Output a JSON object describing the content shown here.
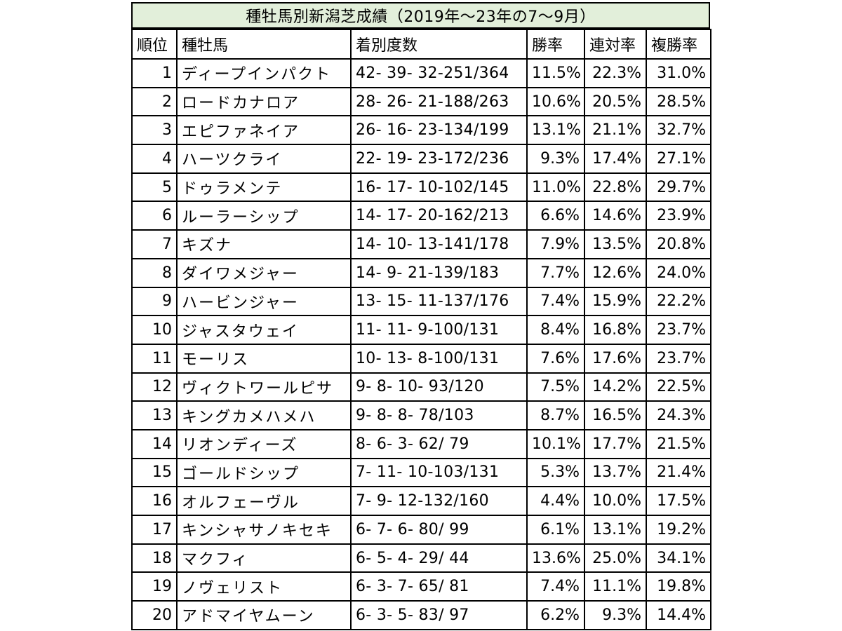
{
  "title": "種牡馬別新潟芝成績（2019年～23年の7～9月）",
  "headers": {
    "rank": "順位",
    "sire": "種牡馬",
    "record": "着別度数",
    "win_rate": "勝率",
    "quinella_rate": "連対率",
    "place_rate": "複勝率"
  },
  "rows": [
    {
      "rank": "1",
      "sire": "ディープインパクト",
      "record": "42- 39- 32-251/364",
      "win": "11.5%",
      "quinella": "22.3%",
      "place": "31.0%"
    },
    {
      "rank": "2",
      "sire": "ロードカナロア",
      "record": "28- 26- 21-188/263",
      "win": "10.6%",
      "quinella": "20.5%",
      "place": "28.5%"
    },
    {
      "rank": "3",
      "sire": "エピファネイア",
      "record": "26- 16- 23-134/199",
      "win": "13.1%",
      "quinella": "21.1%",
      "place": "32.7%"
    },
    {
      "rank": "4",
      "sire": "ハーツクライ",
      "record": "22- 19- 23-172/236",
      "win": "9.3%",
      "quinella": "17.4%",
      "place": "27.1%"
    },
    {
      "rank": "5",
      "sire": "ドゥラメンテ",
      "record": "16- 17- 10-102/145",
      "win": "11.0%",
      "quinella": "22.8%",
      "place": "29.7%"
    },
    {
      "rank": "6",
      "sire": "ルーラーシップ",
      "record": "14- 17- 20-162/213",
      "win": "6.6%",
      "quinella": "14.6%",
      "place": "23.9%"
    },
    {
      "rank": "7",
      "sire": "キズナ",
      "record": "14- 10- 13-141/178",
      "win": "7.9%",
      "quinella": "13.5%",
      "place": "20.8%"
    },
    {
      "rank": "8",
      "sire": "ダイワメジャー",
      "record": "14-  9- 21-139/183",
      "win": "7.7%",
      "quinella": "12.6%",
      "place": "24.0%"
    },
    {
      "rank": "9",
      "sire": "ハービンジャー",
      "record": "13- 15- 11-137/176",
      "win": "7.4%",
      "quinella": "15.9%",
      "place": "22.2%"
    },
    {
      "rank": "10",
      "sire": "ジャスタウェイ",
      "record": "11- 11-  9-100/131",
      "win": "8.4%",
      "quinella": "16.8%",
      "place": "23.7%"
    },
    {
      "rank": "11",
      "sire": "モーリス",
      "record": "10- 13-  8-100/131",
      "win": "7.6%",
      "quinella": "17.6%",
      "place": "23.7%"
    },
    {
      "rank": "12",
      "sire": "ヴィクトワールピサ",
      "record": " 9-  8- 10- 93/120",
      "win": "7.5%",
      "quinella": "14.2%",
      "place": "22.5%"
    },
    {
      "rank": "13",
      "sire": "キングカメハメハ",
      "record": " 9-  8-  8- 78/103",
      "win": "8.7%",
      "quinella": "16.5%",
      "place": "24.3%"
    },
    {
      "rank": "14",
      "sire": "リオンディーズ",
      "record": " 8-  6-  3- 62/ 79",
      "win": "10.1%",
      "quinella": "17.7%",
      "place": "21.5%"
    },
    {
      "rank": "15",
      "sire": "ゴールドシップ",
      "record": " 7- 11- 10-103/131",
      "win": "5.3%",
      "quinella": "13.7%",
      "place": "21.4%"
    },
    {
      "rank": "16",
      "sire": "オルフェーヴル",
      "record": " 7-  9- 12-132/160",
      "win": "4.4%",
      "quinella": "10.0%",
      "place": "17.5%"
    },
    {
      "rank": "17",
      "sire": "キンシャサノキセキ",
      "record": " 6-  7-  6- 80/ 99",
      "win": "6.1%",
      "quinella": "13.1%",
      "place": "19.2%"
    },
    {
      "rank": "18",
      "sire": "マクフィ",
      "record": " 6-  5-  4- 29/ 44",
      "win": "13.6%",
      "quinella": "25.0%",
      "place": "34.1%"
    },
    {
      "rank": "19",
      "sire": "ノヴェリスト",
      "record": " 6-  3-  7- 65/ 81",
      "win": "7.4%",
      "quinella": "11.1%",
      "place": "19.8%"
    },
    {
      "rank": "20",
      "sire": "アドマイヤムーン",
      "record": " 6-  3-  5- 83/ 97",
      "win": "6.2%",
      "quinella": "9.3%",
      "place": "14.4%"
    }
  ]
}
